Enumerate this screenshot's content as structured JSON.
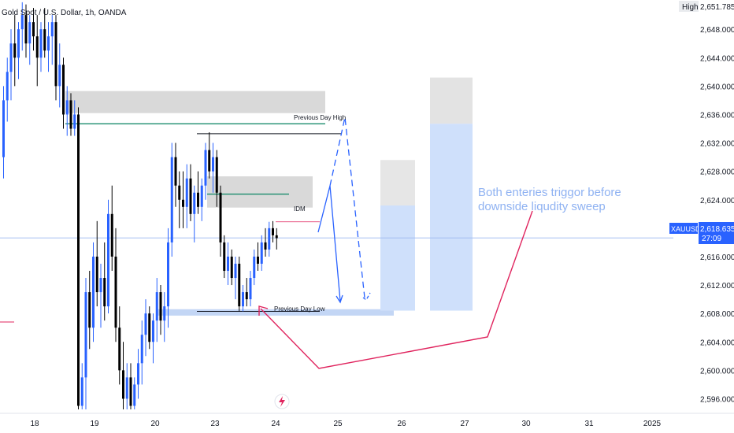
{
  "header": {
    "title": "Gold Spot / U.S. Dollar, 1h, OANDA"
  },
  "price_axis": {
    "high_label": "High",
    "high_value": "2,651.785",
    "symbol": "XAUUSD",
    "last_price": "2,618.635",
    "countdown": "27:09"
  },
  "annotations": {
    "previous_day_high": "Previous Day High",
    "previous_day_low": "Previous Day Low",
    "idm": "IDM",
    "note_line1": "Both enteries triggor before",
    "note_line2": "downside liqudity sweep"
  },
  "colors": {
    "bull": "#2962ff",
    "bear": "#000000",
    "note": "#8fb2f2",
    "arrow": "#e0245e",
    "green_line": "#1b8c6e",
    "zone_gray": "#d9d9d9",
    "zone_blue": "#cfe0fb",
    "current_price": "#2962ff"
  },
  "chart_data": {
    "type": "candlestick",
    "title": "Gold Spot / U.S. Dollar, 1h, OANDA",
    "y_ticks": [
      "2,648.000",
      "2,644.000",
      "2,640.000",
      "2,636.000",
      "2,632.000",
      "2,628.000",
      "2,624.000",
      "2,620.000",
      "2,616.000",
      "2,612.000",
      "2,608.000",
      "2,604.000",
      "2,600.000",
      "2,596.000"
    ],
    "x_ticks": [
      "18",
      "19",
      "20",
      "23",
      "24",
      "25",
      "26",
      "27",
      "30",
      "31",
      "2025"
    ],
    "ylim": [
      2594.5,
      2651.785
    ],
    "levels": {
      "previous_day_high": 2633.3,
      "previous_day_low": 2608.3,
      "current_price": 2618.635,
      "idm": 2620.9
    },
    "zones": [
      {
        "name": "supply-upper",
        "low": 2636.2,
        "high": 2639.3
      },
      {
        "name": "supply-mid",
        "low": 2622.9,
        "high": 2627.3
      },
      {
        "name": "demand",
        "low": 2607.7,
        "high": 2608.6
      },
      {
        "name": "trade-1-risk",
        "low": 2623.2,
        "high": 2629.6
      },
      {
        "name": "trade-1-reward",
        "low": 2608.4,
        "high": 2623.2
      },
      {
        "name": "trade-2-risk",
        "low": 2634.7,
        "high": 2641.2
      },
      {
        "name": "trade-2-reward",
        "low": 2608.4,
        "high": 2634.7
      }
    ],
    "candles": [
      {
        "o": 2630,
        "h": 2640,
        "l": 2627,
        "c": 2638
      },
      {
        "o": 2638,
        "h": 2644,
        "l": 2635,
        "c": 2642
      },
      {
        "o": 2642,
        "h": 2648,
        "l": 2638,
        "c": 2646
      },
      {
        "o": 2646,
        "h": 2650,
        "l": 2640,
        "c": 2644
      },
      {
        "o": 2644,
        "h": 2649,
        "l": 2641,
        "c": 2648
      },
      {
        "o": 2648,
        "h": 2651.8,
        "l": 2645,
        "c": 2650
      },
      {
        "o": 2650,
        "h": 2651.5,
        "l": 2644,
        "c": 2646
      },
      {
        "o": 2646,
        "h": 2650,
        "l": 2643,
        "c": 2649
      },
      {
        "o": 2649,
        "h": 2651,
        "l": 2645,
        "c": 2647
      },
      {
        "o": 2647,
        "h": 2650,
        "l": 2640,
        "c": 2644
      },
      {
        "o": 2644,
        "h": 2649,
        "l": 2642,
        "c": 2648
      },
      {
        "o": 2648,
        "h": 2651,
        "l": 2644,
        "c": 2645
      },
      {
        "o": 2645,
        "h": 2649,
        "l": 2642,
        "c": 2647
      },
      {
        "o": 2647,
        "h": 2650,
        "l": 2643,
        "c": 2649
      },
      {
        "o": 2649,
        "h": 2650,
        "l": 2638,
        "c": 2640
      },
      {
        "o": 2640,
        "h": 2646,
        "l": 2637,
        "c": 2643
      },
      {
        "o": 2643,
        "h": 2644,
        "l": 2634,
        "c": 2636
      },
      {
        "o": 2636,
        "h": 2640,
        "l": 2633,
        "c": 2638
      },
      {
        "o": 2638,
        "h": 2639,
        "l": 2633,
        "c": 2634
      },
      {
        "o": 2634,
        "h": 2638,
        "l": 2633,
        "c": 2636
      },
      {
        "o": 2636,
        "h": 2637,
        "l": 2594.5,
        "c": 2595
      },
      {
        "o": 2595,
        "h": 2601,
        "l": 2594.5,
        "c": 2599
      },
      {
        "o": 2599,
        "h": 2613,
        "l": 2594.5,
        "c": 2611
      },
      {
        "o": 2611,
        "h": 2614,
        "l": 2603,
        "c": 2606
      },
      {
        "o": 2606,
        "h": 2618,
        "l": 2604,
        "c": 2616
      },
      {
        "o": 2616,
        "h": 2621,
        "l": 2609,
        "c": 2611
      },
      {
        "o": 2611,
        "h": 2615,
        "l": 2606,
        "c": 2613
      },
      {
        "o": 2613,
        "h": 2618,
        "l": 2607,
        "c": 2609
      },
      {
        "o": 2609,
        "h": 2624,
        "l": 2608,
        "c": 2622
      },
      {
        "o": 2622,
        "h": 2626,
        "l": 2614,
        "c": 2616
      },
      {
        "o": 2616,
        "h": 2620,
        "l": 2604,
        "c": 2606
      },
      {
        "o": 2606,
        "h": 2609,
        "l": 2598,
        "c": 2600
      },
      {
        "o": 2600,
        "h": 2604,
        "l": 2594.5,
        "c": 2596
      },
      {
        "o": 2596,
        "h": 2601,
        "l": 2594.5,
        "c": 2599
      },
      {
        "o": 2599,
        "h": 2601,
        "l": 2594.5,
        "c": 2595
      },
      {
        "o": 2595,
        "h": 2599,
        "l": 2594.5,
        "c": 2598
      },
      {
        "o": 2598,
        "h": 2603,
        "l": 2596,
        "c": 2601
      },
      {
        "o": 2601,
        "h": 2607,
        "l": 2598,
        "c": 2605
      },
      {
        "o": 2605,
        "h": 2610,
        "l": 2602,
        "c": 2608
      },
      {
        "o": 2608,
        "h": 2609,
        "l": 2603,
        "c": 2604
      },
      {
        "o": 2604,
        "h": 2608,
        "l": 2601,
        "c": 2607
      },
      {
        "o": 2607,
        "h": 2613,
        "l": 2604,
        "c": 2611
      },
      {
        "o": 2611,
        "h": 2612,
        "l": 2605,
        "c": 2607
      },
      {
        "o": 2607,
        "h": 2611,
        "l": 2604,
        "c": 2609
      },
      {
        "o": 2609,
        "h": 2620,
        "l": 2606,
        "c": 2618
      },
      {
        "o": 2618,
        "h": 2632,
        "l": 2616,
        "c": 2630
      },
      {
        "o": 2630,
        "h": 2632,
        "l": 2623,
        "c": 2626
      },
      {
        "o": 2626,
        "h": 2628,
        "l": 2620,
        "c": 2624
      },
      {
        "o": 2624,
        "h": 2628,
        "l": 2620,
        "c": 2623
      },
      {
        "o": 2623,
        "h": 2629,
        "l": 2620,
        "c": 2627
      },
      {
        "o": 2627,
        "h": 2629,
        "l": 2621,
        "c": 2622
      },
      {
        "o": 2622,
        "h": 2626,
        "l": 2618,
        "c": 2625
      },
      {
        "o": 2625,
        "h": 2628,
        "l": 2622,
        "c": 2623
      },
      {
        "o": 2623,
        "h": 2627,
        "l": 2621,
        "c": 2626
      },
      {
        "o": 2626,
        "h": 2632,
        "l": 2624,
        "c": 2631
      },
      {
        "o": 2631,
        "h": 2633.5,
        "l": 2627,
        "c": 2628
      },
      {
        "o": 2628,
        "h": 2632,
        "l": 2625,
        "c": 2630
      },
      {
        "o": 2630,
        "h": 2631,
        "l": 2623,
        "c": 2625
      },
      {
        "o": 2625,
        "h": 2626,
        "l": 2616,
        "c": 2618
      },
      {
        "o": 2618,
        "h": 2619,
        "l": 2613,
        "c": 2614
      },
      {
        "o": 2614,
        "h": 2618,
        "l": 2612,
        "c": 2616
      },
      {
        "o": 2616,
        "h": 2617,
        "l": 2612,
        "c": 2613
      },
      {
        "o": 2613,
        "h": 2616,
        "l": 2610,
        "c": 2615
      },
      {
        "o": 2615,
        "h": 2616,
        "l": 2608.3,
        "c": 2609
      },
      {
        "o": 2609,
        "h": 2612,
        "l": 2608.3,
        "c": 2611
      },
      {
        "o": 2611,
        "h": 2613,
        "l": 2609,
        "c": 2610
      },
      {
        "o": 2610,
        "h": 2614,
        "l": 2609,
        "c": 2613
      },
      {
        "o": 2613,
        "h": 2617,
        "l": 2612,
        "c": 2616
      },
      {
        "o": 2616,
        "h": 2618,
        "l": 2614,
        "c": 2615
      },
      {
        "o": 2615,
        "h": 2619,
        "l": 2614,
        "c": 2618
      },
      {
        "o": 2618,
        "h": 2620,
        "l": 2616,
        "c": 2617
      },
      {
        "o": 2617,
        "h": 2620.9,
        "l": 2616,
        "c": 2620
      },
      {
        "o": 2620,
        "h": 2621,
        "l": 2618,
        "c": 2619
      },
      {
        "o": 2619,
        "h": 2620,
        "l": 2617,
        "c": 2618.6
      }
    ]
  }
}
